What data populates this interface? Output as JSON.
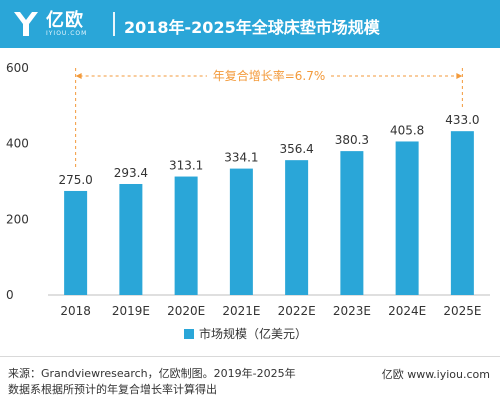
{
  "header": {
    "logo_text": "亿欧",
    "logo_sub": "IYIOU.COM",
    "title": "2018年-2025年全球床垫市场规模"
  },
  "chart_data": {
    "type": "bar",
    "title": "2018年-2025年全球床垫市场规模",
    "categories": [
      "2018",
      "2019E",
      "2020E",
      "2021E",
      "2022E",
      "2023E",
      "2024E",
      "2025E"
    ],
    "series": [
      {
        "name": "市场规模（亿美元）",
        "values": [
          275.0,
          293.4,
          313.1,
          334.1,
          356.4,
          380.3,
          405.8,
          433.0
        ]
      }
    ],
    "value_labels": [
      "275.0",
      "293.4",
      "313.1",
      "334.1",
      "356.4",
      "380.3",
      "405.8",
      "433.0"
    ],
    "yticks": [
      0,
      200,
      400,
      600
    ],
    "ylim": [
      0,
      600
    ],
    "xlabel": "",
    "ylabel": "",
    "annotation": "年复合增长率=6.7%",
    "grid": false,
    "legend_position": "bottom-center",
    "colors": {
      "bar": "#2aa6d8",
      "annotation": "#f39a3b",
      "axis": "#bfbfbf",
      "text": "#333333"
    }
  },
  "footer": {
    "source_line1": "来源：Grandviewresearch，亿欧制图。2019年-2025年",
    "source_line2": "数据系根据所预计的年复合增长率计算得出",
    "brand": "亿欧 www.iyiou.com"
  }
}
